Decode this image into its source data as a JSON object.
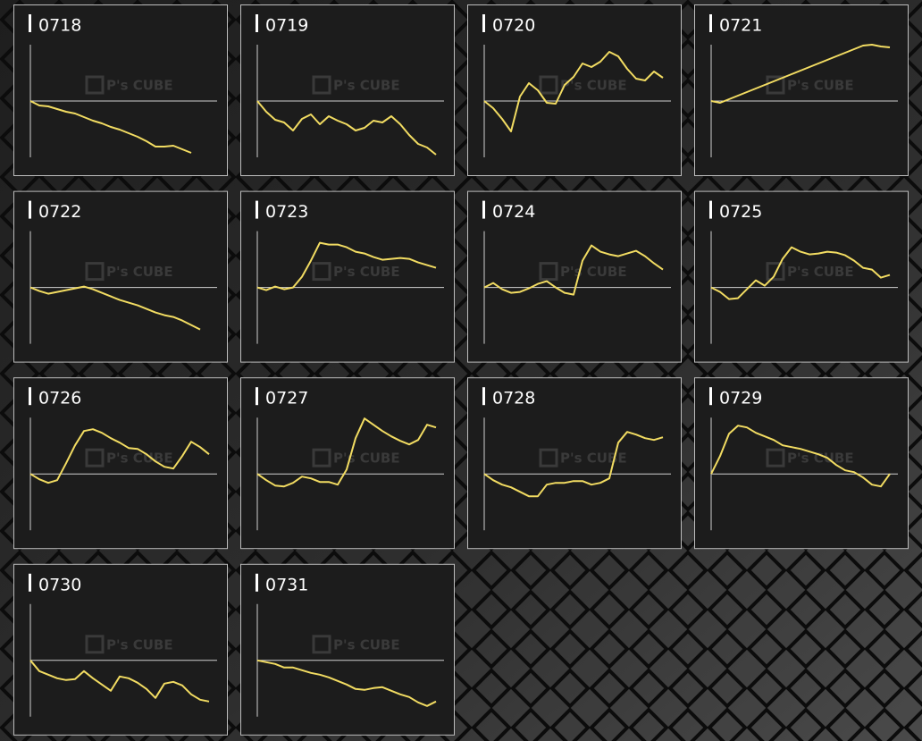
{
  "watermark": "P's CUBE",
  "chart_data": [
    {
      "type": "line",
      "title": "0718",
      "color": "#f2dc62",
      "ylim": [
        -63,
        63
      ],
      "yticks": [
        0
      ],
      "values": [
        0,
        -5,
        -6,
        -9,
        -12,
        -14,
        -18,
        -22,
        -25,
        -29,
        -32,
        -36,
        -40,
        -45,
        -51,
        -51,
        -50,
        -54,
        -58
      ]
    },
    {
      "type": "line",
      "title": "0719",
      "color": "#f2dc62",
      "ylim": [
        -63,
        63
      ],
      "yticks": [
        0
      ],
      "values": [
        0,
        -12,
        -21,
        -24,
        -33,
        -20,
        -15,
        -26,
        -17,
        -22,
        -26,
        -33,
        -30,
        -22,
        -24,
        -17,
        -26,
        -38,
        -48,
        -52,
        -60
      ]
    },
    {
      "type": "line",
      "title": "0720",
      "color": "#f2dc62",
      "ylim": [
        -63,
        63
      ],
      "yticks": [
        0
      ],
      "values": [
        0,
        -8,
        -20,
        -34,
        5,
        20,
        12,
        -2,
        -3,
        18,
        27,
        42,
        38,
        44,
        55,
        50,
        36,
        25,
        23,
        33,
        26
      ]
    },
    {
      "type": "line",
      "title": "0721",
      "color": "#f2dc62",
      "ylim": [
        -63,
        63
      ],
      "yticks": [
        0
      ],
      "values": [
        0,
        -2,
        2,
        6,
        10,
        14,
        18,
        22,
        26,
        30,
        34,
        38,
        42,
        46,
        50,
        54,
        58,
        62,
        63,
        61,
        60
      ]
    },
    {
      "type": "line",
      "title": "0722",
      "color": "#f2dc62",
      "ylim": [
        -63,
        63
      ],
      "yticks": [
        0
      ],
      "values": [
        0,
        -4,
        -7,
        -5,
        -3,
        -1,
        1,
        -2,
        -6,
        -10,
        -14,
        -17,
        -20,
        -24,
        -28,
        -31,
        -33,
        -37,
        -42,
        -47
      ]
    },
    {
      "type": "line",
      "title": "0723",
      "color": "#f2dc62",
      "ylim": [
        -63,
        63
      ],
      "yticks": [
        0
      ],
      "values": [
        0,
        -3,
        1,
        -2,
        0,
        12,
        30,
        50,
        48,
        48,
        45,
        40,
        38,
        34,
        31,
        32,
        33,
        32,
        28,
        25,
        22
      ]
    },
    {
      "type": "line",
      "title": "0724",
      "color": "#f2dc62",
      "ylim": [
        -63,
        63
      ],
      "yticks": [
        0
      ],
      "values": [
        0,
        5,
        -2,
        -6,
        -5,
        -1,
        4,
        7,
        0,
        -6,
        -8,
        30,
        47,
        40,
        37,
        35,
        38,
        41,
        35,
        27,
        20
      ]
    },
    {
      "type": "line",
      "title": "0725",
      "color": "#f2dc62",
      "ylim": [
        -63,
        63
      ],
      "yticks": [
        0
      ],
      "values": [
        0,
        -5,
        -13,
        -12,
        -2,
        8,
        2,
        12,
        32,
        45,
        40,
        37,
        38,
        40,
        39,
        36,
        30,
        22,
        20,
        11,
        14
      ]
    },
    {
      "type": "line",
      "title": "0726",
      "color": "#f2dc62",
      "ylim": [
        -63,
        63
      ],
      "yticks": [
        0
      ],
      "values": [
        0,
        -6,
        -10,
        -7,
        12,
        32,
        48,
        50,
        46,
        40,
        35,
        29,
        28,
        22,
        14,
        8,
        6,
        20,
        36,
        30,
        22
      ]
    },
    {
      "type": "line",
      "title": "0727",
      "color": "#f2dc62",
      "ylim": [
        -63,
        63
      ],
      "yticks": [
        0
      ],
      "values": [
        0,
        -7,
        -13,
        -14,
        -10,
        -3,
        -5,
        -9,
        -9,
        -12,
        5,
        40,
        62,
        55,
        48,
        42,
        37,
        33,
        38,
        55,
        52
      ]
    },
    {
      "type": "line",
      "title": "0728",
      "color": "#f2dc62",
      "ylim": [
        -63,
        63
      ],
      "yticks": [
        0
      ],
      "values": [
        0,
        -7,
        -12,
        -15,
        -20,
        -25,
        -25,
        -12,
        -10,
        -10,
        -8,
        -8,
        -12,
        -10,
        -5,
        35,
        47,
        44,
        40,
        38,
        41
      ]
    },
    {
      "type": "line",
      "title": "0729",
      "color": "#f2dc62",
      "ylim": [
        -63,
        63
      ],
      "yticks": [
        0
      ],
      "values": [
        0,
        20,
        45,
        54,
        52,
        46,
        42,
        38,
        32,
        30,
        28,
        25,
        22,
        18,
        10,
        4,
        2,
        -4,
        -12,
        -14,
        0
      ]
    },
    {
      "type": "line",
      "title": "0730",
      "color": "#f2dc62",
      "ylim": [
        -63,
        63
      ],
      "yticks": [
        0
      ],
      "values": [
        0,
        -12,
        -16,
        -20,
        -22,
        -21,
        -12,
        -20,
        -27,
        -34,
        -18,
        -20,
        -25,
        -32,
        -42,
        -26,
        -24,
        -28,
        -38,
        -44,
        -46
      ]
    },
    {
      "type": "line",
      "title": "0731",
      "color": "#f2dc62",
      "ylim": [
        -63,
        63
      ],
      "yticks": [
        0
      ],
      "values": [
        0,
        -2,
        -4,
        -8,
        -8,
        -11,
        -14,
        -16,
        -19,
        -23,
        -27,
        -32,
        -33,
        -31,
        -30,
        -34,
        -38,
        -41,
        -47,
        -51,
        -46
      ]
    }
  ]
}
